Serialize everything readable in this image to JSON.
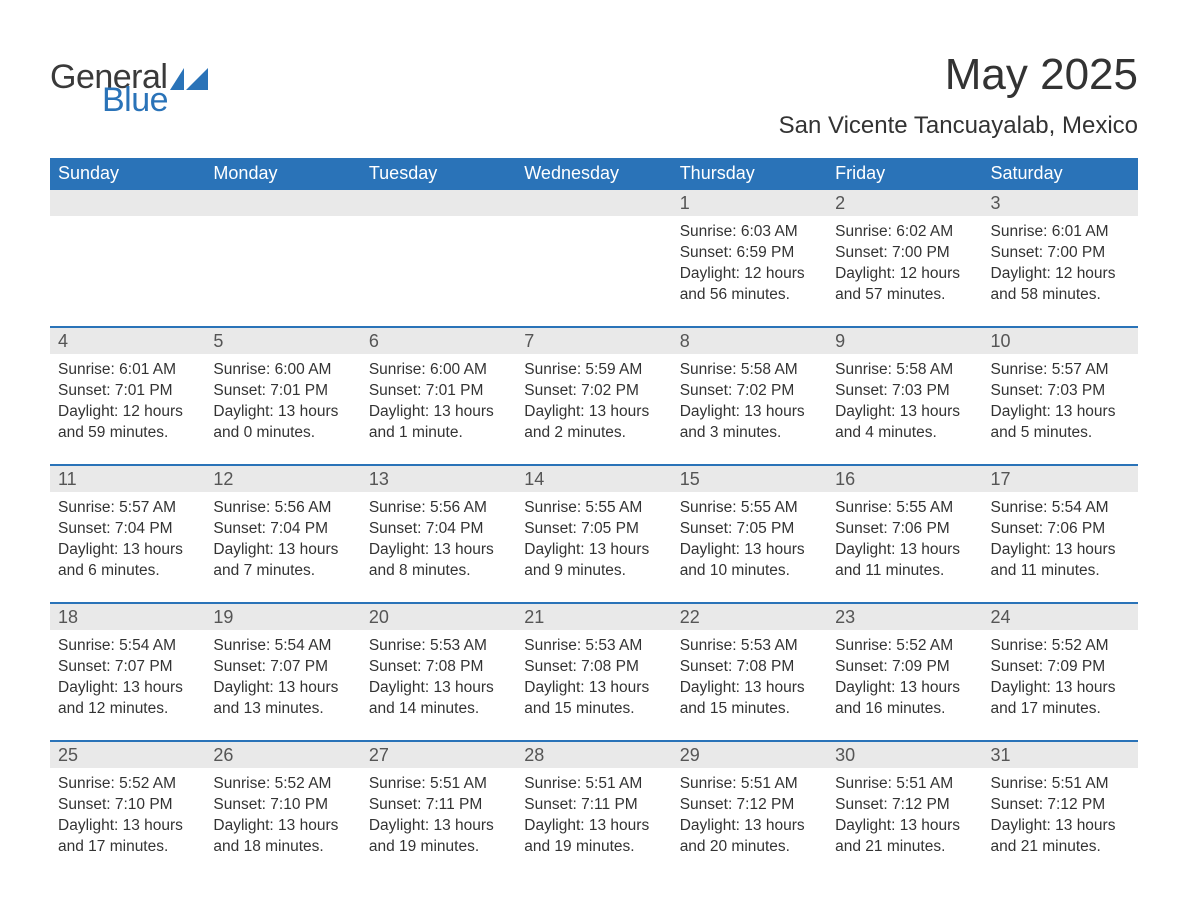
{
  "brand": {
    "text1": "General",
    "text2": "Blue",
    "icon_color": "#2a73b8"
  },
  "title": "May 2025",
  "subtitle": "San Vicente Tancuayalab, Mexico",
  "colors": {
    "header_bg": "#2a73b8",
    "header_text": "#ffffff",
    "daynum_bg": "#e9e9e9",
    "daynum_text": "#555555",
    "body_text": "#333333",
    "page_bg": "#ffffff",
    "row_border": "#2a73b8"
  },
  "font": {
    "family": "Arial",
    "title_size": 44,
    "subtitle_size": 24,
    "header_size": 18,
    "body_size": 15.5
  },
  "weekdays": [
    "Sunday",
    "Monday",
    "Tuesday",
    "Wednesday",
    "Thursday",
    "Friday",
    "Saturday"
  ],
  "weeks": [
    [
      {
        "n": "",
        "lines": []
      },
      {
        "n": "",
        "lines": []
      },
      {
        "n": "",
        "lines": []
      },
      {
        "n": "",
        "lines": []
      },
      {
        "n": "1",
        "lines": [
          "Sunrise: 6:03 AM",
          "Sunset: 6:59 PM",
          "Daylight: 12 hours and 56 minutes."
        ]
      },
      {
        "n": "2",
        "lines": [
          "Sunrise: 6:02 AM",
          "Sunset: 7:00 PM",
          "Daylight: 12 hours and 57 minutes."
        ]
      },
      {
        "n": "3",
        "lines": [
          "Sunrise: 6:01 AM",
          "Sunset: 7:00 PM",
          "Daylight: 12 hours and 58 minutes."
        ]
      }
    ],
    [
      {
        "n": "4",
        "lines": [
          "Sunrise: 6:01 AM",
          "Sunset: 7:01 PM",
          "Daylight: 12 hours and 59 minutes."
        ]
      },
      {
        "n": "5",
        "lines": [
          "Sunrise: 6:00 AM",
          "Sunset: 7:01 PM",
          "Daylight: 13 hours and 0 minutes."
        ]
      },
      {
        "n": "6",
        "lines": [
          "Sunrise: 6:00 AM",
          "Sunset: 7:01 PM",
          "Daylight: 13 hours and 1 minute."
        ]
      },
      {
        "n": "7",
        "lines": [
          "Sunrise: 5:59 AM",
          "Sunset: 7:02 PM",
          "Daylight: 13 hours and 2 minutes."
        ]
      },
      {
        "n": "8",
        "lines": [
          "Sunrise: 5:58 AM",
          "Sunset: 7:02 PM",
          "Daylight: 13 hours and 3 minutes."
        ]
      },
      {
        "n": "9",
        "lines": [
          "Sunrise: 5:58 AM",
          "Sunset: 7:03 PM",
          "Daylight: 13 hours and 4 minutes."
        ]
      },
      {
        "n": "10",
        "lines": [
          "Sunrise: 5:57 AM",
          "Sunset: 7:03 PM",
          "Daylight: 13 hours and 5 minutes."
        ]
      }
    ],
    [
      {
        "n": "11",
        "lines": [
          "Sunrise: 5:57 AM",
          "Sunset: 7:04 PM",
          "Daylight: 13 hours and 6 minutes."
        ]
      },
      {
        "n": "12",
        "lines": [
          "Sunrise: 5:56 AM",
          "Sunset: 7:04 PM",
          "Daylight: 13 hours and 7 minutes."
        ]
      },
      {
        "n": "13",
        "lines": [
          "Sunrise: 5:56 AM",
          "Sunset: 7:04 PM",
          "Daylight: 13 hours and 8 minutes."
        ]
      },
      {
        "n": "14",
        "lines": [
          "Sunrise: 5:55 AM",
          "Sunset: 7:05 PM",
          "Daylight: 13 hours and 9 minutes."
        ]
      },
      {
        "n": "15",
        "lines": [
          "Sunrise: 5:55 AM",
          "Sunset: 7:05 PM",
          "Daylight: 13 hours and 10 minutes."
        ]
      },
      {
        "n": "16",
        "lines": [
          "Sunrise: 5:55 AM",
          "Sunset: 7:06 PM",
          "Daylight: 13 hours and 11 minutes."
        ]
      },
      {
        "n": "17",
        "lines": [
          "Sunrise: 5:54 AM",
          "Sunset: 7:06 PM",
          "Daylight: 13 hours and 11 minutes."
        ]
      }
    ],
    [
      {
        "n": "18",
        "lines": [
          "Sunrise: 5:54 AM",
          "Sunset: 7:07 PM",
          "Daylight: 13 hours and 12 minutes."
        ]
      },
      {
        "n": "19",
        "lines": [
          "Sunrise: 5:54 AM",
          "Sunset: 7:07 PM",
          "Daylight: 13 hours and 13 minutes."
        ]
      },
      {
        "n": "20",
        "lines": [
          "Sunrise: 5:53 AM",
          "Sunset: 7:08 PM",
          "Daylight: 13 hours and 14 minutes."
        ]
      },
      {
        "n": "21",
        "lines": [
          "Sunrise: 5:53 AM",
          "Sunset: 7:08 PM",
          "Daylight: 13 hours and 15 minutes."
        ]
      },
      {
        "n": "22",
        "lines": [
          "Sunrise: 5:53 AM",
          "Sunset: 7:08 PM",
          "Daylight: 13 hours and 15 minutes."
        ]
      },
      {
        "n": "23",
        "lines": [
          "Sunrise: 5:52 AM",
          "Sunset: 7:09 PM",
          "Daylight: 13 hours and 16 minutes."
        ]
      },
      {
        "n": "24",
        "lines": [
          "Sunrise: 5:52 AM",
          "Sunset: 7:09 PM",
          "Daylight: 13 hours and 17 minutes."
        ]
      }
    ],
    [
      {
        "n": "25",
        "lines": [
          "Sunrise: 5:52 AM",
          "Sunset: 7:10 PM",
          "Daylight: 13 hours and 17 minutes."
        ]
      },
      {
        "n": "26",
        "lines": [
          "Sunrise: 5:52 AM",
          "Sunset: 7:10 PM",
          "Daylight: 13 hours and 18 minutes."
        ]
      },
      {
        "n": "27",
        "lines": [
          "Sunrise: 5:51 AM",
          "Sunset: 7:11 PM",
          "Daylight: 13 hours and 19 minutes."
        ]
      },
      {
        "n": "28",
        "lines": [
          "Sunrise: 5:51 AM",
          "Sunset: 7:11 PM",
          "Daylight: 13 hours and 19 minutes."
        ]
      },
      {
        "n": "29",
        "lines": [
          "Sunrise: 5:51 AM",
          "Sunset: 7:12 PM",
          "Daylight: 13 hours and 20 minutes."
        ]
      },
      {
        "n": "30",
        "lines": [
          "Sunrise: 5:51 AM",
          "Sunset: 7:12 PM",
          "Daylight: 13 hours and 21 minutes."
        ]
      },
      {
        "n": "31",
        "lines": [
          "Sunrise: 5:51 AM",
          "Sunset: 7:12 PM",
          "Daylight: 13 hours and 21 minutes."
        ]
      }
    ]
  ]
}
